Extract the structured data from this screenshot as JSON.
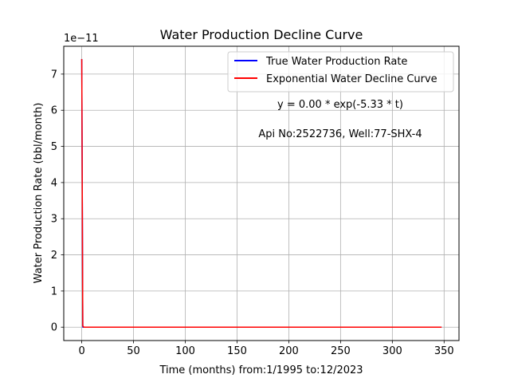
{
  "chart_data": {
    "type": "line",
    "title": "Water Production Decline Curve",
    "xlabel": "Time (months) from:1/1995 to:12/2023",
    "ylabel": "Water Production Rate (bbl/month)",
    "y_offset_label": "1e−11",
    "xlim": [
      -17.4,
      364.4
    ],
    "ylim": [
      -3.7e-12,
      7.77e-11
    ],
    "x_ticks": [
      0,
      50,
      100,
      150,
      200,
      250,
      300,
      350
    ],
    "x_tick_labels": [
      "0",
      "50",
      "100",
      "150",
      "200",
      "250",
      "300",
      "350"
    ],
    "y_ticks": [
      0,
      1e-11,
      2e-11,
      3e-11,
      4e-11,
      5e-11,
      6e-11,
      7e-11
    ],
    "y_tick_labels": [
      "0",
      "1",
      "2",
      "3",
      "4",
      "5",
      "6",
      "7"
    ],
    "grid": true,
    "legend_position": "top-right",
    "annotations": [
      "y = 0.00 * exp(-5.33 * t)",
      "Api No:2522736, Well:77-SHX-4"
    ],
    "series": [
      {
        "name": "True Water Production Rate",
        "color": "#0000ff",
        "x": [
          0,
          1,
          2,
          347
        ],
        "y": [
          7.4e-11,
          0,
          0,
          0
        ]
      },
      {
        "name": "Exponential Water Decline Curve",
        "color": "#ff0000",
        "x": [
          0,
          1,
          2,
          347
        ],
        "y": [
          7.4e-11,
          3.6e-13,
          1.7e-15,
          0
        ]
      }
    ]
  }
}
